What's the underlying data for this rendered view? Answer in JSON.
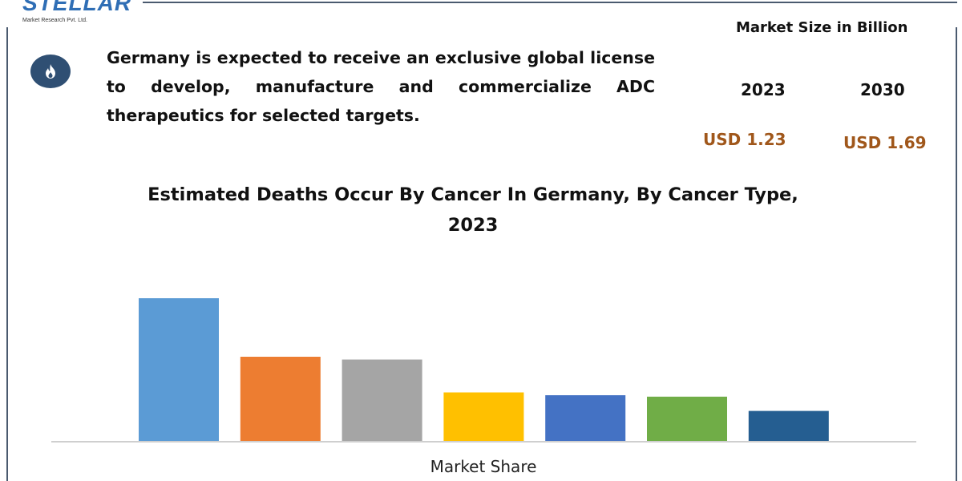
{
  "logo": {
    "wordmark": "STELLAR",
    "tagline": "Market Research Pvt. Ltd."
  },
  "icons": {
    "badge": "flame-icon"
  },
  "summary": "Germany is expected to receive an exclusive global license to develop, manufacture and commercialize ADC therapeutics for selected targets.",
  "market": {
    "title": "Market Size in Billion",
    "years": [
      "2023",
      "2030"
    ],
    "values": [
      "USD 1.23",
      "USD 1.69"
    ]
  },
  "colors": {
    "frame": "#4a5a6f",
    "value_text": "#a0571b",
    "badge": "#2f4f73",
    "axis": "#bfbfbf"
  },
  "chart_data": {
    "type": "bar",
    "title": "Estimated Deaths Occur By Cancer In Germany, By Cancer Type, 2023",
    "xlabel": "Market Share",
    "ylabel": "",
    "grid": false,
    "ylim": [
      0,
      100
    ],
    "values": [
      100,
      59,
      57,
      34,
      32,
      31,
      21
    ],
    "colors": [
      "#5b9bd5",
      "#ed7d31",
      "#a5a5a5",
      "#ffc000",
      "#4472c4",
      "#70ad47",
      "#255e91"
    ]
  }
}
